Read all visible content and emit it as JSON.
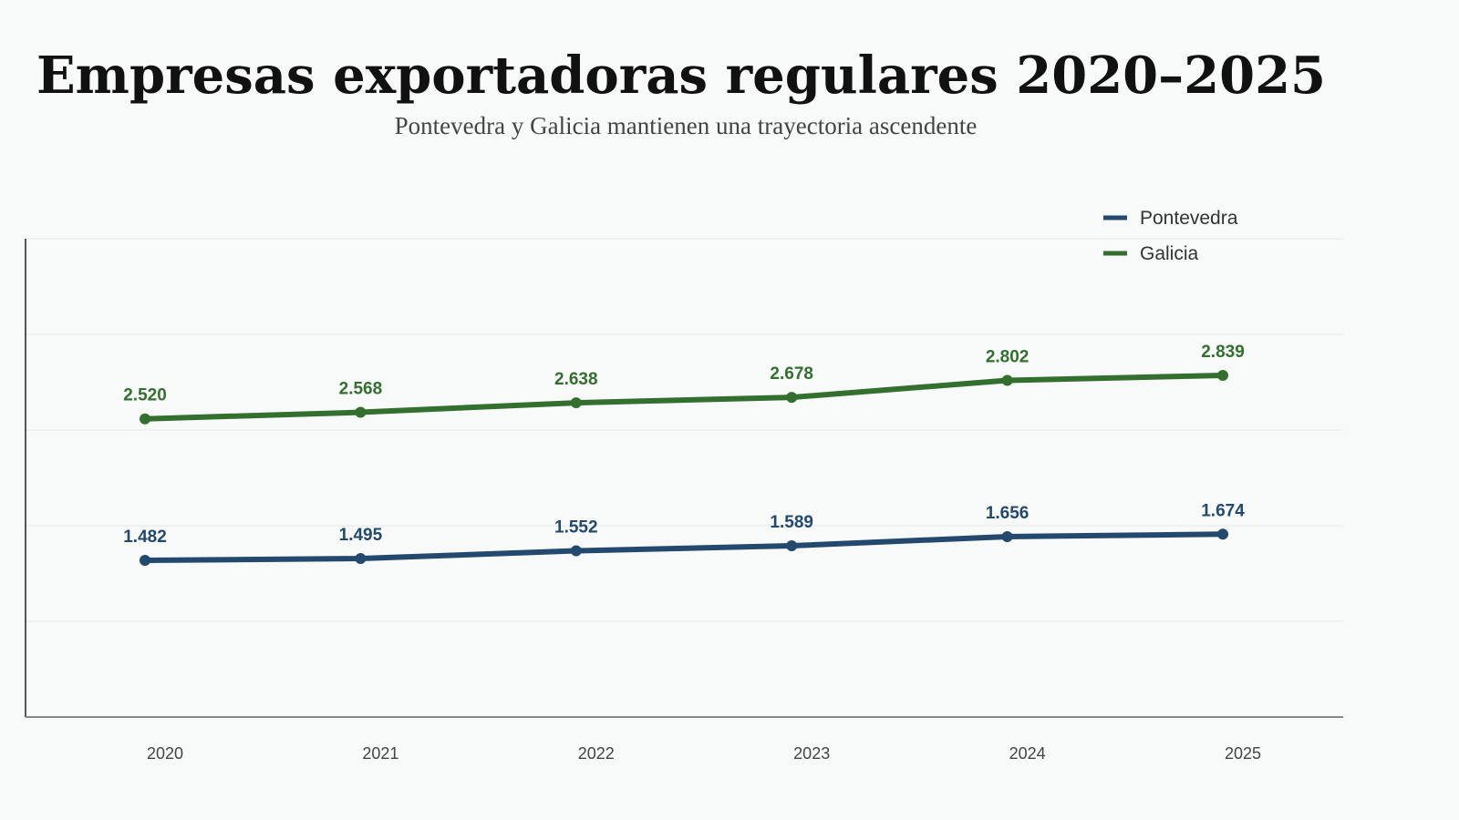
{
  "chart_data": {
    "type": "line",
    "title": "Empresas exportadoras regulares 2020–2025",
    "subtitle": "Pontevedra y Galicia mantienen una trayectoria ascendente",
    "categories": [
      "2020",
      "2021",
      "2022",
      "2023",
      "2024",
      "2025"
    ],
    "series": [
      {
        "name": "Pontevedra",
        "color": "#24496e",
        "values": [
          1482,
          1495,
          1552,
          1589,
          1656,
          1674
        ],
        "value_labels": [
          "1.482",
          "1.495",
          "1.552",
          "1.589",
          "1.656",
          "1.674"
        ]
      },
      {
        "name": "Galicia",
        "color": "#336f2f",
        "values": [
          2520,
          2568,
          2638,
          2678,
          2802,
          2839
        ],
        "value_labels": [
          "2.520",
          "2.568",
          "2.638",
          "2.678",
          "2.802",
          "2.839"
        ]
      }
    ],
    "grid": true
  }
}
